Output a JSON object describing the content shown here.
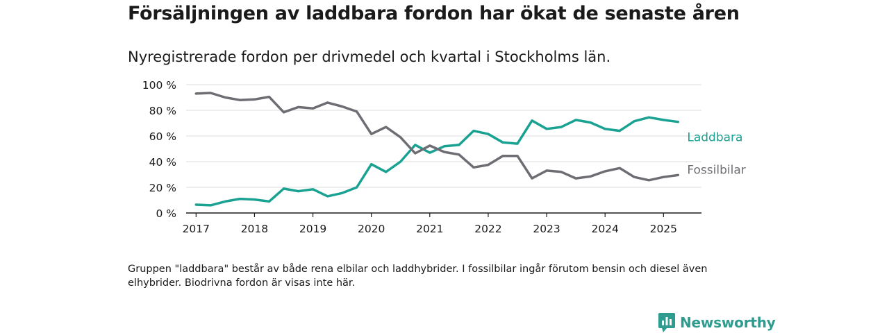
{
  "header": {
    "title": "Försäljningen av laddbara fordon har ökat de senaste åren",
    "subtitle": "Nyregistrerade fordon per drivmedel och kvartal i Stockholms län."
  },
  "footnote": "Gruppen \"laddbara\" består av både rena elbilar och laddhybrider. I fossilbilar ingår förutom bensin och diesel även elhybrider. Biodrivna fordon är visas inte här.",
  "brand": {
    "name": "Newsworthy",
    "icon": "newsworthy-logo-icon",
    "color": "#2e9c8f"
  },
  "chart_data": {
    "type": "line",
    "x_label_values": [
      2017,
      2018,
      2019,
      2020,
      2021,
      2022,
      2023,
      2024,
      2025
    ],
    "y_ticks": [
      0,
      20,
      40,
      60,
      80,
      100
    ],
    "y_tick_labels": [
      "0 %",
      "20 %",
      "40 %",
      "60 %",
      "80 %",
      "100 %"
    ],
    "xlim": [
      2016.83,
      2025.65
    ],
    "ylim": [
      0,
      100
    ],
    "grid": true,
    "xlabel": "",
    "ylabel": "",
    "x": [
      2017.0,
      2017.25,
      2017.5,
      2017.75,
      2018.0,
      2018.25,
      2018.5,
      2018.75,
      2019.0,
      2019.25,
      2019.5,
      2019.75,
      2020.0,
      2020.25,
      2020.5,
      2020.75,
      2021.0,
      2021.25,
      2021.5,
      2021.75,
      2022.0,
      2022.25,
      2022.5,
      2022.75,
      2023.0,
      2023.25,
      2023.5,
      2023.75,
      2024.0,
      2024.25,
      2024.5,
      2024.75,
      2025.0,
      2025.25
    ],
    "series": [
      {
        "name": "Laddbara",
        "color": "#19a192",
        "values": [
          6.5,
          6,
          9,
          11,
          10.5,
          9,
          19,
          17,
          18.5,
          13,
          15.5,
          20,
          38,
          32,
          40,
          53,
          47,
          52,
          53,
          64,
          61.5,
          55,
          54,
          72,
          65.5,
          67,
          72.5,
          70.5,
          65.5,
          64,
          71.5,
          74.5,
          72.5,
          71
        ]
      },
      {
        "name": "Fossilbilar",
        "color": "#6e6d73",
        "values": [
          93,
          93.5,
          90,
          88,
          88.5,
          90.5,
          78.5,
          82.5,
          81.5,
          86,
          83,
          79,
          61.5,
          67,
          59,
          46.5,
          52.5,
          47.5,
          45.5,
          35.5,
          37.5,
          44.5,
          44.5,
          27,
          33,
          32,
          27,
          28.5,
          32.5,
          35,
          28,
          25.5,
          28,
          29.5
        ]
      }
    ]
  }
}
